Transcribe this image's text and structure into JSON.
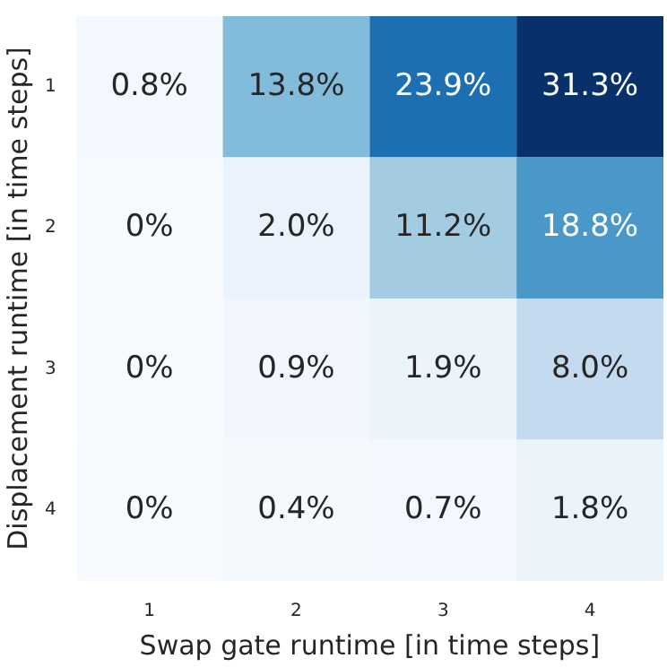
{
  "chart_data": {
    "type": "heatmap",
    "xlabel": "Swap gate runtime [in time steps]",
    "ylabel": "Displacement runtime [in time steps]",
    "categories": [
      "1",
      "2",
      "3",
      "4"
    ],
    "y_categories": [
      "1",
      "2",
      "3",
      "4"
    ],
    "cells": [
      [
        0.8,
        13.8,
        23.9,
        31.3
      ],
      [
        0,
        2.0,
        11.2,
        18.8
      ],
      [
        0,
        0.9,
        1.9,
        8.0
      ],
      [
        0,
        0.4,
        0.7,
        1.8
      ]
    ],
    "cell_labels": [
      [
        "0.8%",
        "13.8%",
        "23.9%",
        "31.3%"
      ],
      [
        "0%",
        "2.0%",
        "11.2%",
        "18.8%"
      ],
      [
        "0%",
        "0.9%",
        "1.9%",
        "8.0%"
      ],
      [
        "0%",
        "0.4%",
        "0.7%",
        "1.8%"
      ]
    ]
  }
}
